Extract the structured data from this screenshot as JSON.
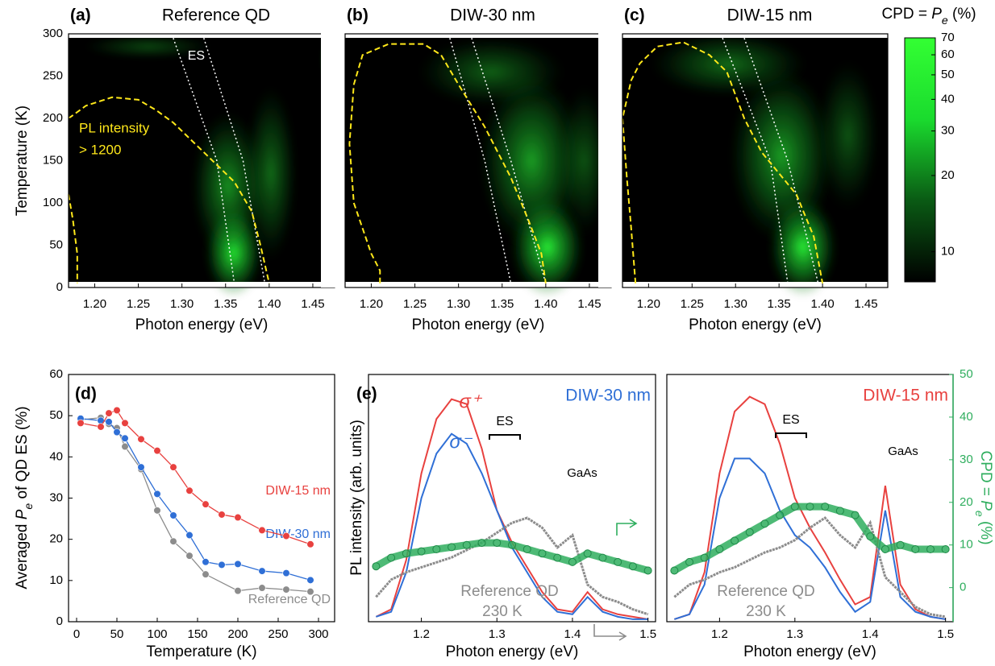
{
  "chart_data": [
    {
      "type": "heatmap",
      "panel_label": "(a)",
      "title": "Reference QD",
      "x_label": "Photon energy (eV)",
      "y_label": "Temperature (K)",
      "xlim": [
        1.17,
        1.475
      ],
      "xticks": [
        {
          "value": 1.2,
          "label": "1.20"
        },
        {
          "value": 1.25,
          "label": "1.25"
        },
        {
          "value": 1.3,
          "label": "1.30"
        },
        {
          "value": 1.35,
          "label": "1.35"
        },
        {
          "value": 1.4,
          "label": "1.40"
        },
        {
          "value": 1.45,
          "label": "1.45"
        }
      ],
      "ylim": [
        0,
        300
      ],
      "yticks": [
        0,
        50,
        100,
        150,
        200,
        250,
        300
      ],
      "contour": {
        "color": "#ffe81a",
        "x": [
          1.17,
          1.19,
          1.22,
          1.25,
          1.27,
          1.29,
          1.31,
          1.33,
          1.36,
          1.38,
          1.39,
          1.4,
          null,
          1.17,
          1.175,
          1.18,
          1.18
        ],
        "y": [
          200,
          215,
          225,
          222,
          210,
          195,
          175,
          155,
          125,
          90,
          50,
          5,
          null,
          110,
          80,
          40,
          5
        ]
      },
      "es_lines": [
        {
          "x": [
            1.29,
            1.34,
            1.36
          ],
          "y": [
            295,
            150,
            5
          ]
        },
        {
          "x": [
            1.325,
            1.37,
            1.395
          ],
          "y": [
            295,
            150,
            5
          ]
        }
      ],
      "es_label": "ES",
      "annotation": [
        "PL intensity",
        "> 1200"
      ]
    },
    {
      "type": "heatmap",
      "panel_label": "(b)",
      "title": "DIW-30 nm",
      "x_label": "Photon energy (eV)",
      "xlim": [
        1.17,
        1.475
      ],
      "xticks": [
        {
          "value": 1.2,
          "label": "1.20"
        },
        {
          "value": 1.25,
          "label": "1.25"
        },
        {
          "value": 1.3,
          "label": "1.30"
        },
        {
          "value": 1.35,
          "label": "1.35"
        },
        {
          "value": 1.4,
          "label": "1.40"
        },
        {
          "value": 1.45,
          "label": "1.45"
        }
      ],
      "ylim": [
        0,
        300
      ],
      "contour": {
        "color": "#ffe81a",
        "x": [
          1.21,
          1.21,
          1.2,
          1.18,
          1.175,
          1.18,
          1.19,
          1.22,
          1.26,
          1.28,
          1.3,
          1.33,
          1.36,
          1.38,
          1.395,
          1.4
        ],
        "y": [
          5,
          20,
          40,
          100,
          170,
          240,
          275,
          288,
          288,
          275,
          240,
          190,
          130,
          80,
          40,
          5
        ]
      },
      "es_lines": [
        {
          "x": [
            1.29,
            1.33,
            1.36
          ],
          "y": [
            295,
            150,
            5
          ]
        },
        {
          "x": [
            1.315,
            1.36,
            1.4
          ],
          "y": [
            295,
            150,
            5
          ]
        }
      ]
    },
    {
      "type": "heatmap",
      "panel_label": "(c)",
      "title": "DIW-15 nm",
      "x_label": "Photon energy (eV)",
      "xlim": [
        1.17,
        1.475
      ],
      "xticks": [
        {
          "value": 1.2,
          "label": "1.20"
        },
        {
          "value": 1.25,
          "label": "1.25"
        },
        {
          "value": 1.3,
          "label": "1.30"
        },
        {
          "value": 1.35,
          "label": "1.35"
        },
        {
          "value": 1.4,
          "label": "1.40"
        },
        {
          "value": 1.45,
          "label": "1.45"
        }
      ],
      "ylim": [
        0,
        300
      ],
      "contour": {
        "color": "#ffe81a",
        "x": [
          1.185,
          1.18,
          1.175,
          1.17,
          1.18,
          1.19,
          1.21,
          1.24,
          1.27,
          1.29,
          1.31,
          1.33,
          1.37,
          1.39,
          1.4
        ],
        "y": [
          5,
          70,
          130,
          200,
          245,
          265,
          285,
          290,
          275,
          255,
          200,
          160,
          110,
          60,
          5
        ]
      },
      "es_lines": [
        {
          "x": [
            1.285,
            1.34,
            1.36
          ],
          "y": [
            295,
            150,
            5
          ]
        },
        {
          "x": [
            1.31,
            1.36,
            1.395
          ],
          "y": [
            295,
            150,
            5
          ]
        }
      ]
    },
    {
      "type": "colorbar",
      "label_parts": [
        "CPD = ",
        "P",
        "e",
        " (%)"
      ],
      "log": true,
      "lim": [
        7.6,
        70
      ],
      "ticks": [
        10,
        20,
        30,
        40,
        50,
        60,
        70
      ],
      "colors": [
        "#000000",
        "#0a5a14",
        "#1adb2e",
        "#33ff33"
      ]
    },
    {
      "type": "line",
      "panel_label": "(d)",
      "x_label": "Temperature (K)",
      "y_label_parts": [
        "Averaged ",
        "P",
        "e",
        " of QD ES (%)"
      ],
      "xlim": [
        -10,
        320
      ],
      "xticks": [
        0,
        50,
        100,
        150,
        200,
        250,
        300
      ],
      "ylim": [
        0,
        60
      ],
      "yticks": [
        0,
        10,
        20,
        30,
        40,
        50,
        60
      ],
      "series": [
        {
          "name": "DIW-15 nm",
          "color": "#e8413f",
          "x": [
            5,
            30,
            40,
            50,
            60,
            80,
            100,
            120,
            140,
            160,
            180,
            200,
            230,
            260,
            290
          ],
          "values": [
            48.2,
            47.3,
            50.6,
            51.3,
            48.2,
            44.3,
            41.5,
            37.5,
            31.8,
            28.5,
            26,
            25.3,
            22.2,
            20.8,
            18.8
          ]
        },
        {
          "name": "DIW-30 nm",
          "color": "#2f6fd6",
          "x": [
            5,
            30,
            40,
            50,
            60,
            80,
            100,
            120,
            140,
            160,
            180,
            200,
            230,
            260,
            290
          ],
          "values": [
            49.3,
            48.8,
            48.5,
            46,
            44.5,
            37.5,
            31,
            25.8,
            21,
            14.5,
            13.8,
            14,
            12.3,
            11.8,
            10.1
          ]
        },
        {
          "name": "Reference QD",
          "color": "#8c8c8c",
          "x": [
            5,
            30,
            40,
            50,
            60,
            80,
            100,
            120,
            140,
            160,
            200,
            230,
            260,
            290
          ],
          "values": [
            49,
            49.5,
            48,
            47,
            42.5,
            37,
            27,
            19.5,
            16,
            11.5,
            7.5,
            8.2,
            7.8,
            7.3
          ]
        }
      ]
    },
    {
      "type": "spectra",
      "panel_label": "(e)",
      "title": "DIW-30 nm",
      "title_color": "#2f6fd6",
      "x_label": "Photon energy (eV)",
      "y_label": "PL intensity (arb. units)",
      "xlim": [
        1.13,
        1.51
      ],
      "xticks": [
        1.2,
        1.3,
        1.4,
        1.5
      ],
      "ylim": [
        0,
        1
      ],
      "y2lim": [
        -8,
        50
      ],
      "x": [
        1.14,
        1.16,
        1.18,
        1.2,
        1.22,
        1.24,
        1.26,
        1.28,
        1.3,
        1.32,
        1.34,
        1.36,
        1.38,
        1.4,
        1.42,
        1.44,
        1.46,
        1.48,
        1.5
      ],
      "series": [
        {
          "name": "σ⁺",
          "color": "#e8413f",
          "values": [
            0.02,
            0.05,
            0.25,
            0.6,
            0.82,
            0.9,
            0.88,
            0.7,
            0.45,
            0.32,
            0.22,
            0.12,
            0.05,
            0.04,
            0.12,
            0.05,
            0.03,
            0.02,
            0.01
          ]
        },
        {
          "name": "σ⁻",
          "color": "#2f6fd6",
          "values": [
            0.02,
            0.04,
            0.2,
            0.5,
            0.68,
            0.76,
            0.72,
            0.6,
            0.45,
            0.3,
            0.2,
            0.1,
            0.04,
            0.03,
            0.1,
            0.04,
            0.02,
            0.01,
            0.01
          ]
        },
        {
          "color": "#8c8c8c",
          "values": [
            0.1,
            0.17,
            0.2,
            0.22,
            0.24,
            0.26,
            0.29,
            0.32,
            0.36,
            0.4,
            0.42,
            0.38,
            0.3,
            0.35,
            0.15,
            0.1,
            0.08,
            0.05,
            0.03
          ]
        },
        {
          "color": "#2fae5e",
          "axis": "y2",
          "values": [
            5,
            7,
            8,
            8.5,
            9,
            9.5,
            10,
            10.5,
            10.5,
            10,
            9,
            8,
            7,
            6,
            8,
            7,
            6,
            5,
            4
          ]
        }
      ],
      "annotations": {
        "es": "ES",
        "gaas": "GaAs",
        "reference": "Reference QD",
        "temperature": "230 K"
      }
    },
    {
      "type": "spectra",
      "title": "DIW-15 nm",
      "title_color": "#e8413f",
      "x_label": "Photon energy (eV)",
      "y2_label_parts": [
        "CPD = ",
        "P",
        "e",
        " (%)"
      ],
      "xlim": [
        1.13,
        1.51
      ],
      "xticks": [
        1.2,
        1.3,
        1.4,
        1.5
      ],
      "ylim": [
        0,
        1
      ],
      "y2lim": [
        -8,
        50
      ],
      "y2ticks": [
        0,
        10,
        20,
        30,
        40,
        50
      ],
      "y2_color": "#2fae5e",
      "x": [
        1.14,
        1.16,
        1.18,
        1.2,
        1.22,
        1.24,
        1.26,
        1.28,
        1.3,
        1.32,
        1.34,
        1.36,
        1.38,
        1.4,
        1.42,
        1.44,
        1.46,
        1.48,
        1.5
      ],
      "series": [
        {
          "color": "#e8413f",
          "values": [
            0.01,
            0.03,
            0.2,
            0.6,
            0.85,
            0.91,
            0.88,
            0.72,
            0.5,
            0.38,
            0.28,
            0.17,
            0.07,
            0.1,
            0.55,
            0.15,
            0.05,
            0.02,
            0.01
          ]
        },
        {
          "color": "#2f6fd6",
          "values": [
            0.01,
            0.03,
            0.15,
            0.5,
            0.66,
            0.66,
            0.6,
            0.45,
            0.35,
            0.3,
            0.22,
            0.12,
            0.04,
            0.08,
            0.45,
            0.1,
            0.04,
            0.02,
            0.01
          ]
        },
        {
          "color": "#8c8c8c",
          "values": [
            0.1,
            0.15,
            0.17,
            0.2,
            0.22,
            0.25,
            0.28,
            0.3,
            0.33,
            0.38,
            0.42,
            0.35,
            0.3,
            0.4,
            0.18,
            0.12,
            0.06,
            0.03,
            0.02
          ]
        },
        {
          "color": "#2fae5e",
          "axis": "y2",
          "values": [
            4,
            6,
            7,
            9,
            11,
            13,
            15,
            17,
            19,
            19,
            19,
            18,
            17,
            12,
            9,
            10,
            9,
            9,
            9
          ]
        }
      ],
      "annotations": {
        "es": "ES",
        "gaas": "GaAs",
        "reference": "Reference QD",
        "temperature": "230 K"
      }
    }
  ]
}
